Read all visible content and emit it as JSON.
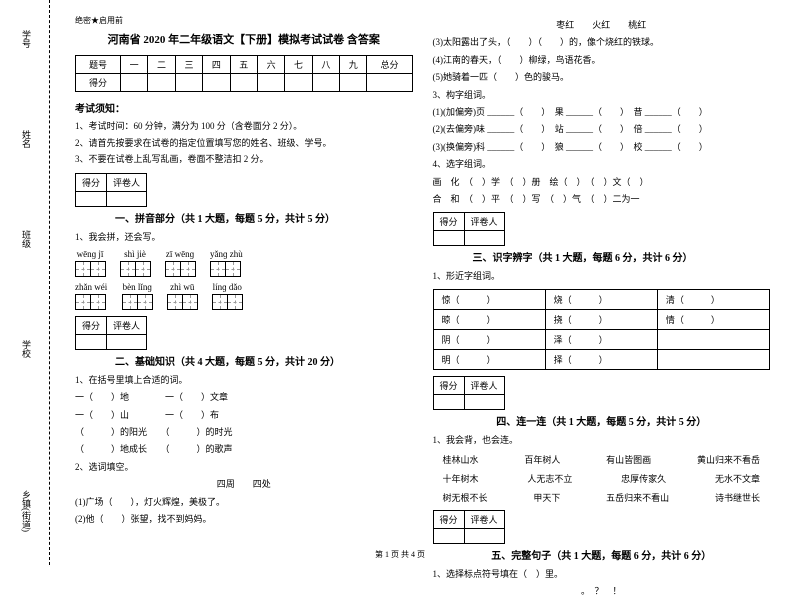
{
  "leftMargin": {
    "labels": [
      "学号",
      "姓名",
      "班级",
      "学校",
      "乡镇(街道)"
    ],
    "dots": [
      "题",
      "本",
      "内",
      "线",
      "封"
    ]
  },
  "header": {
    "confidential": "绝密★启用前",
    "title": "河南省 2020 年二年级语文【下册】模拟考试试卷 含答案"
  },
  "scoreTable": {
    "headers": [
      "题号",
      "一",
      "二",
      "三",
      "四",
      "五",
      "六",
      "七",
      "八",
      "九",
      "总分"
    ],
    "row2": "得分"
  },
  "instructions": {
    "title": "考试须知：",
    "items": [
      "1、考试时间：60 分钟，满分为 100 分（含卷面分 2 分）。",
      "2、请首先按要求在试卷的指定位置填写您的姓名、班级、学号。",
      "3、不要在试卷上乱写乱画，卷面不整洁扣 2 分。"
    ]
  },
  "scoreBox": {
    "col1": "得分",
    "col2": "评卷人"
  },
  "part1": {
    "title": "一、拼音部分（共 1 大题，每题 5 分，共计 5 分）",
    "q1": "1、我会拼，还会写。",
    "pinyin1": [
      "wēnɡ jī",
      "shì jiè",
      "zī wēnɡ",
      "yǎnɡ zhù"
    ],
    "pinyin2": [
      "zhǎn wéi",
      "bèn lǐnɡ",
      "zhì wū",
      "línɡ dǎo"
    ]
  },
  "part2": {
    "title": "二、基础知识（共 4 大题，每题 5 分，共计 20 分）",
    "q1": "1、在括号里填上合适的词。",
    "lines1": [
      "一（　　）地　　　　一（　　）文章",
      "一（　　）山　　　　一（　　）布",
      "（　　　）的阳光　　（　　　）的时光",
      "（　　　）地成长　　（　　　）的歌声"
    ],
    "q2": "2、选词填空。",
    "sub": "四周　　四处",
    "lines2": [
      "(1)广场（　　），灯火辉煌，美极了。",
      "(2)他（　　）张望，找不到妈妈。"
    ]
  },
  "rightTop": {
    "line1": "枣红　　火红　　桃红",
    "lines": [
      "(3)太阳露出了头，（　　）（　　）的，像个烧红的铁球。",
      "(4)江南的春天，（　　）柳绿，鸟语花香。",
      "(5)她骑着一匹（　　）色的骏马。"
    ],
    "q3": "3、构字组词。",
    "q3lines": [
      "(1)(加偏旁)页 ______（　　）　果 ______（　　）　昔 ______（　　）",
      "(2)(去偏旁)味 ______（　　）　站 ______（　　）　倍 ______（　　）",
      "(3)(换偏旁)科 ______（　　）　狼 ______（　　）　校 ______（　　）"
    ],
    "q4": "4、选字组词。",
    "q4lines": [
      "画　化　（　）学　（　）册　绘（　）　（　）文（　）",
      "合　和　（　）平　（　）写　（　）气　（　）二为一"
    ]
  },
  "part3": {
    "title": "三、识字辨字（共 1 大题，每题 6 分，共计 6 分）",
    "q1": "1、形近字组词。",
    "rows": [
      [
        "惊（　　　）",
        "烧（　　　）",
        "清（　　　）"
      ],
      [
        "晾（　　　）",
        "挠（　　　）",
        "情（　　　）"
      ],
      [
        "阴（　　　）",
        "泽（　　　）",
        "",
        ""
      ],
      [
        "明（　　　）",
        "择（　　　）",
        "",
        ""
      ]
    ]
  },
  "part4": {
    "title": "四、连一连（共 1 大题，每题 5 分，共计 5 分）",
    "q1": "1、我会背，也会连。",
    "rows": [
      [
        "桂林山水",
        "百年树人",
        "有山皆图画",
        "黄山归来不看岳"
      ],
      [
        "十年树木",
        "人无志不立",
        "忠厚传家久",
        "无水不文章"
      ],
      [
        "树无根不长",
        "甲天下",
        "五岳归来不看山",
        "诗书继世长"
      ]
    ]
  },
  "part5": {
    "title": "五、完整句子（共 1 大题，每题 6 分，共计 6 分）",
    "q1": "1、选择标点符号填在（　）里。",
    "marks": "。　？　！"
  },
  "footer": "第 1 页 共 4 页"
}
